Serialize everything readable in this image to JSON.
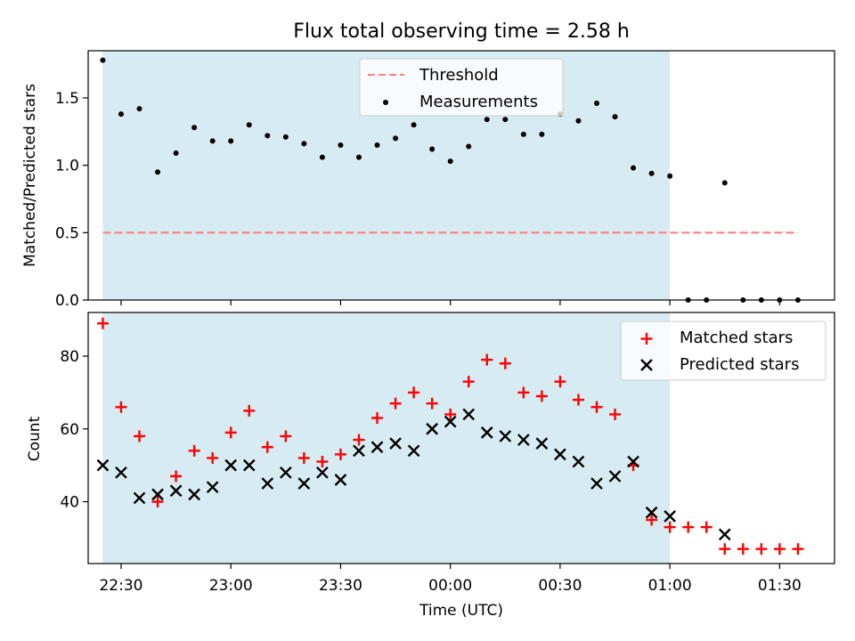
{
  "figure": {
    "title": "Flux total observing time = 2.58 h"
  },
  "chart_data": [
    {
      "type": "scatter",
      "panel": "top",
      "ylabel": "Matched/Predicted stars",
      "xlim": [
        "22:21",
        "01:45"
      ],
      "ylim": [
        0,
        1.85
      ],
      "yticks": [
        0.0,
        0.5,
        1.0,
        1.5
      ],
      "ytick_labels": [
        "0.0",
        "0.5",
        "1.0",
        "1.5"
      ],
      "shaded_span": [
        "22:25",
        "01:00"
      ],
      "shade_color": "#add8e6",
      "legend_position": "upper center",
      "threshold": {
        "name": "Threshold",
        "value": 0.5,
        "x": [
          "22:25",
          "01:35"
        ],
        "color": "#ff7f7f",
        "style": "dashed"
      },
      "series": [
        {
          "name": "Measurements",
          "color": "#000000",
          "marker": "dot",
          "x": [
            "22:25",
            "22:30",
            "22:35",
            "22:40",
            "22:45",
            "22:50",
            "22:55",
            "23:00",
            "23:05",
            "23:10",
            "23:15",
            "23:20",
            "23:25",
            "23:30",
            "23:35",
            "23:40",
            "23:45",
            "23:50",
            "23:55",
            "00:00",
            "00:05",
            "00:10",
            "00:15",
            "00:20",
            "00:25",
            "00:30",
            "00:35",
            "00:40",
            "00:45",
            "00:50",
            "00:55",
            "01:00",
            "01:05",
            "01:10",
            "01:15",
            "01:20",
            "01:25",
            "01:30",
            "01:35"
          ],
          "values": [
            1.78,
            1.38,
            1.42,
            0.95,
            1.09,
            1.28,
            1.18,
            1.18,
            1.3,
            1.22,
            1.21,
            1.16,
            1.06,
            1.15,
            1.06,
            1.15,
            1.2,
            1.3,
            1.12,
            1.03,
            1.14,
            1.34,
            1.34,
            1.23,
            1.23,
            1.38,
            1.33,
            1.46,
            1.36,
            0.98,
            0.94,
            0.92,
            0.0,
            0.0,
            0.87,
            0.0,
            0.0,
            0.0,
            0.0
          ]
        }
      ]
    },
    {
      "type": "scatter",
      "panel": "bottom",
      "xlabel": "Time (UTC)",
      "ylabel": "Count",
      "xlim": [
        "22:21",
        "01:45"
      ],
      "ylim": [
        23,
        92
      ],
      "yticks": [
        40,
        60,
        80
      ],
      "ytick_labels": [
        "40",
        "60",
        "80"
      ],
      "xticks": [
        "22:30",
        "23:00",
        "23:30",
        "00:00",
        "00:30",
        "01:00",
        "01:30"
      ],
      "xtick_labels": [
        "22:30",
        "23:00",
        "23:30",
        "00:00",
        "00:30",
        "01:00",
        "01:30"
      ],
      "shaded_span": [
        "22:25",
        "01:00"
      ],
      "shade_color": "#add8e6",
      "legend_position": "upper right",
      "series": [
        {
          "name": "Matched stars",
          "color": "#ff0000",
          "marker": "plus",
          "x": [
            "22:25",
            "22:30",
            "22:35",
            "22:40",
            "22:45",
            "22:50",
            "22:55",
            "23:00",
            "23:05",
            "23:10",
            "23:15",
            "23:20",
            "23:25",
            "23:30",
            "23:35",
            "23:40",
            "23:45",
            "23:50",
            "23:55",
            "00:00",
            "00:05",
            "00:10",
            "00:15",
            "00:20",
            "00:25",
            "00:30",
            "00:35",
            "00:40",
            "00:45",
            "00:50",
            "00:55",
            "01:00",
            "01:05",
            "01:10",
            "01:15",
            "01:20",
            "01:25",
            "01:30",
            "01:35"
          ],
          "values": [
            89,
            66,
            58,
            40,
            47,
            54,
            52,
            59,
            65,
            55,
            58,
            52,
            51,
            53,
            57,
            63,
            67,
            70,
            67,
            64,
            73,
            79,
            78,
            70,
            69,
            73,
            68,
            66,
            64,
            50,
            35,
            33,
            33,
            33,
            27,
            27,
            27,
            27,
            27
          ]
        },
        {
          "name": "Predicted stars",
          "color": "#000000",
          "marker": "x",
          "x": [
            "22:25",
            "22:30",
            "22:35",
            "22:40",
            "22:45",
            "22:50",
            "22:55",
            "23:00",
            "23:05",
            "23:10",
            "23:15",
            "23:20",
            "23:25",
            "23:30",
            "23:35",
            "23:40",
            "23:45",
            "23:50",
            "23:55",
            "00:00",
            "00:05",
            "00:10",
            "00:15",
            "00:20",
            "00:25",
            "00:30",
            "00:35",
            "00:40",
            "00:45",
            "00:50",
            "00:55",
            "01:00",
            "01:15"
          ],
          "values": [
            50,
            48,
            41,
            42,
            43,
            42,
            44,
            50,
            50,
            45,
            48,
            45,
            48,
            46,
            54,
            55,
            56,
            54,
            60,
            62,
            64,
            59,
            58,
            57,
            56,
            53,
            51,
            45,
            47,
            51,
            37,
            36,
            31
          ]
        }
      ]
    }
  ]
}
